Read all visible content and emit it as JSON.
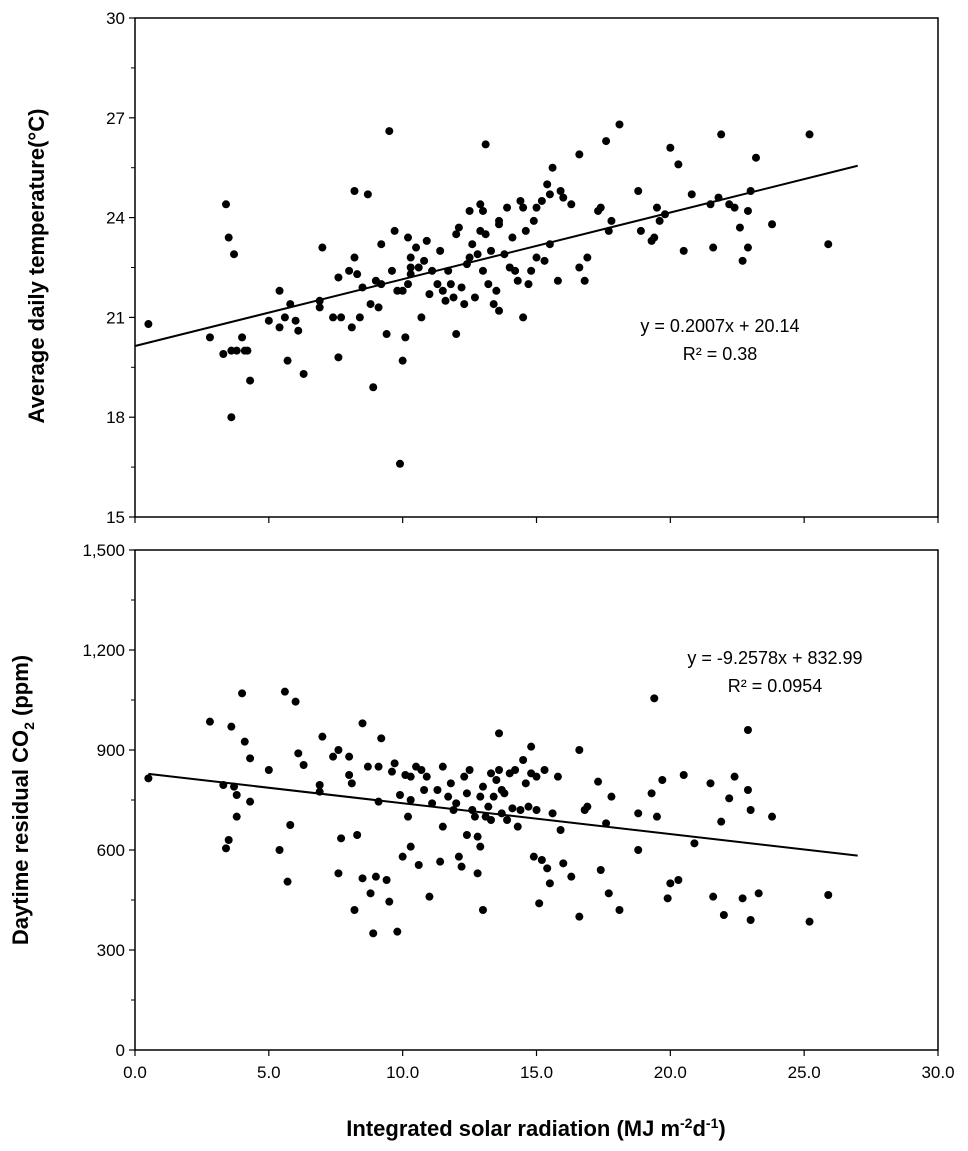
{
  "chart_data": [
    {
      "type": "scatter",
      "title": "",
      "xlabel": "",
      "ylabel": "Average daily temperature(°C)",
      "xlim": [
        0,
        30
      ],
      "ylim": [
        15,
        30
      ],
      "xticks": [
        0,
        5,
        10,
        15,
        20,
        25,
        30
      ],
      "xtick_labels": [],
      "yticks": [
        15,
        18,
        21,
        24,
        27,
        30
      ],
      "ytick_labels": [
        "15",
        "18",
        "21",
        "24",
        "27",
        "30"
      ],
      "grid": false,
      "trendline": {
        "slope": 0.2007,
        "intercept": 20.14,
        "x_range": [
          0,
          27
        ]
      },
      "equation": "y = 0.2007x + 20.14",
      "r_squared": "R² = 0.38",
      "points": [
        [
          0.5,
          20.8
        ],
        [
          2.8,
          20.4
        ],
        [
          3.3,
          19.9
        ],
        [
          3.4,
          24.4
        ],
        [
          3.5,
          23.4
        ],
        [
          3.6,
          18.0
        ],
        [
          3.7,
          22.9
        ],
        [
          3.6,
          20.0
        ],
        [
          3.8,
          20.0
        ],
        [
          4.0,
          20.4
        ],
        [
          4.1,
          20.0
        ],
        [
          4.2,
          20.0
        ],
        [
          4.3,
          19.1
        ],
        [
          5.0,
          20.9
        ],
        [
          5.4,
          20.7
        ],
        [
          5.4,
          21.8
        ],
        [
          5.6,
          21.0
        ],
        [
          5.7,
          19.7
        ],
        [
          5.8,
          21.4
        ],
        [
          6.0,
          20.9
        ],
        [
          6.1,
          20.6
        ],
        [
          6.3,
          19.3
        ],
        [
          6.9,
          21.5
        ],
        [
          6.9,
          21.3
        ],
        [
          7.0,
          23.1
        ],
        [
          7.4,
          21.0
        ],
        [
          7.6,
          19.8
        ],
        [
          7.7,
          21.0
        ],
        [
          7.6,
          22.2
        ],
        [
          8.0,
          22.4
        ],
        [
          8.1,
          20.7
        ],
        [
          8.2,
          22.8
        ],
        [
          8.2,
          24.8
        ],
        [
          8.3,
          22.3
        ],
        [
          8.4,
          21.0
        ],
        [
          8.5,
          21.9
        ],
        [
          8.7,
          24.7
        ],
        [
          8.8,
          21.4
        ],
        [
          8.9,
          18.9
        ],
        [
          9.0,
          22.1
        ],
        [
          9.1,
          21.3
        ],
        [
          9.2,
          23.2
        ],
        [
          9.2,
          22.0
        ],
        [
          9.4,
          20.5
        ],
        [
          9.5,
          26.6
        ],
        [
          9.6,
          22.4
        ],
        [
          9.7,
          23.6
        ],
        [
          9.8,
          21.8
        ],
        [
          9.9,
          16.6
        ],
        [
          10.0,
          21.8
        ],
        [
          10.0,
          19.7
        ],
        [
          10.1,
          20.4
        ],
        [
          10.2,
          22.0
        ],
        [
          10.2,
          23.4
        ],
        [
          10.3,
          22.8
        ],
        [
          10.3,
          22.5
        ],
        [
          10.3,
          22.3
        ],
        [
          10.5,
          23.1
        ],
        [
          10.6,
          22.5
        ],
        [
          10.7,
          21.0
        ],
        [
          10.8,
          22.7
        ],
        [
          10.9,
          23.3
        ],
        [
          11.0,
          21.7
        ],
        [
          11.1,
          22.4
        ],
        [
          11.3,
          22.0
        ],
        [
          11.4,
          23.0
        ],
        [
          11.5,
          21.8
        ],
        [
          11.6,
          21.5
        ],
        [
          11.7,
          22.4
        ],
        [
          11.8,
          22.0
        ],
        [
          11.9,
          21.6
        ],
        [
          12.0,
          20.5
        ],
        [
          12.0,
          23.5
        ],
        [
          12.1,
          23.7
        ],
        [
          12.2,
          21.9
        ],
        [
          12.3,
          21.4
        ],
        [
          12.4,
          22.6
        ],
        [
          12.5,
          24.2
        ],
        [
          12.5,
          22.8
        ],
        [
          12.6,
          23.2
        ],
        [
          12.7,
          21.6
        ],
        [
          12.8,
          22.9
        ],
        [
          12.9,
          24.4
        ],
        [
          12.9,
          23.6
        ],
        [
          13.0,
          24.2
        ],
        [
          13.0,
          22.4
        ],
        [
          13.1,
          23.5
        ],
        [
          13.1,
          26.2
        ],
        [
          13.2,
          22.0
        ],
        [
          13.3,
          23.0
        ],
        [
          13.4,
          21.4
        ],
        [
          13.5,
          21.8
        ],
        [
          13.6,
          23.9
        ],
        [
          13.6,
          21.2
        ],
        [
          13.6,
          23.8
        ],
        [
          13.8,
          22.9
        ],
        [
          13.9,
          24.3
        ],
        [
          14.0,
          22.5
        ],
        [
          14.1,
          23.4
        ],
        [
          14.2,
          22.4
        ],
        [
          14.3,
          22.1
        ],
        [
          14.4,
          24.5
        ],
        [
          14.5,
          21.0
        ],
        [
          14.5,
          24.3
        ],
        [
          14.6,
          23.6
        ],
        [
          14.7,
          22.0
        ],
        [
          14.8,
          22.4
        ],
        [
          14.9,
          23.9
        ],
        [
          15.0,
          24.3
        ],
        [
          15.0,
          22.8
        ],
        [
          15.2,
          24.5
        ],
        [
          15.3,
          22.7
        ],
        [
          15.4,
          25.0
        ],
        [
          15.5,
          23.2
        ],
        [
          15.5,
          24.7
        ],
        [
          15.6,
          25.5
        ],
        [
          15.8,
          22.1
        ],
        [
          15.9,
          24.8
        ],
        [
          16.0,
          24.6
        ],
        [
          16.3,
          24.4
        ],
        [
          16.6,
          22.5
        ],
        [
          16.6,
          25.9
        ],
        [
          16.8,
          22.1
        ],
        [
          16.9,
          22.8
        ],
        [
          17.3,
          24.2
        ],
        [
          17.4,
          24.3
        ],
        [
          17.6,
          26.3
        ],
        [
          17.7,
          23.6
        ],
        [
          17.8,
          23.9
        ],
        [
          18.1,
          26.8
        ],
        [
          18.8,
          24.8
        ],
        [
          18.9,
          23.6
        ],
        [
          19.3,
          23.3
        ],
        [
          19.4,
          23.4
        ],
        [
          19.5,
          24.3
        ],
        [
          19.6,
          23.9
        ],
        [
          19.8,
          24.1
        ],
        [
          20.0,
          26.1
        ],
        [
          20.3,
          25.6
        ],
        [
          20.5,
          23.0
        ],
        [
          20.8,
          24.7
        ],
        [
          21.5,
          24.4
        ],
        [
          21.6,
          23.1
        ],
        [
          21.8,
          24.6
        ],
        [
          21.9,
          26.5
        ],
        [
          22.2,
          24.4
        ],
        [
          22.4,
          24.3
        ],
        [
          22.6,
          23.7
        ],
        [
          22.7,
          22.7
        ],
        [
          22.9,
          23.1
        ],
        [
          22.9,
          24.2
        ],
        [
          23.0,
          24.8
        ],
        [
          23.2,
          25.8
        ],
        [
          23.8,
          23.8
        ],
        [
          25.2,
          26.5
        ],
        [
          25.9,
          23.2
        ]
      ]
    },
    {
      "type": "scatter",
      "title": "",
      "xlabel": "Integrated solar radiation (MJ m-2d-1)",
      "xlabel_parts": {
        "main": "Integrated solar radiation (MJ m",
        "sup1": "-2",
        "mid": "d",
        "sup2": "-1",
        "end": ")"
      },
      "ylabel": "Daytime residual CO2 (ppm)",
      "ylabel_parts": {
        "main": "Daytime residual CO",
        "sub": "2",
        "end": " (ppm)"
      },
      "xlim": [
        0,
        30
      ],
      "ylim": [
        0,
        1500
      ],
      "xticks": [
        0,
        5,
        10,
        15,
        20,
        25,
        30
      ],
      "xtick_labels": [
        "0.0",
        "5.0",
        "10.0",
        "15.0",
        "20.0",
        "25.0",
        "30.0"
      ],
      "yticks": [
        0,
        300,
        600,
        900,
        1200,
        1500
      ],
      "ytick_labels": [
        "0",
        "300",
        "600",
        "900",
        "1,200",
        "1,500"
      ],
      "grid": false,
      "trendline": {
        "slope": -9.2578,
        "intercept": 832.99,
        "x_range": [
          0.5,
          27
        ]
      },
      "equation": "y = -9.2578x + 832.99",
      "r_squared": "R² = 0.0954",
      "points": [
        [
          0.5,
          815
        ],
        [
          2.8,
          985
        ],
        [
          3.3,
          795
        ],
        [
          3.4,
          605
        ],
        [
          3.5,
          630
        ],
        [
          3.6,
          970
        ],
        [
          3.7,
          790
        ],
        [
          3.8,
          700
        ],
        [
          3.8,
          765
        ],
        [
          4.0,
          1070
        ],
        [
          4.1,
          925
        ],
        [
          4.3,
          875
        ],
        [
          4.3,
          745
        ],
        [
          5.0,
          840
        ],
        [
          5.4,
          600
        ],
        [
          5.6,
          1075
        ],
        [
          5.7,
          505
        ],
        [
          5.8,
          675
        ],
        [
          6.0,
          1045
        ],
        [
          6.1,
          890
        ],
        [
          6.3,
          855
        ],
        [
          6.9,
          775
        ],
        [
          6.9,
          795
        ],
        [
          7.0,
          940
        ],
        [
          7.4,
          880
        ],
        [
          7.6,
          530
        ],
        [
          7.6,
          900
        ],
        [
          7.7,
          635
        ],
        [
          8.0,
          880
        ],
        [
          8.0,
          825
        ],
        [
          8.1,
          800
        ],
        [
          8.2,
          420
        ],
        [
          8.3,
          645
        ],
        [
          8.5,
          980
        ],
        [
          8.5,
          515
        ],
        [
          8.7,
          850
        ],
        [
          8.8,
          470
        ],
        [
          8.9,
          350
        ],
        [
          9.0,
          520
        ],
        [
          9.1,
          850
        ],
        [
          9.1,
          745
        ],
        [
          9.2,
          935
        ],
        [
          9.4,
          510
        ],
        [
          9.5,
          445
        ],
        [
          9.6,
          835
        ],
        [
          9.7,
          860
        ],
        [
          9.8,
          355
        ],
        [
          9.9,
          765
        ],
        [
          10.0,
          580
        ],
        [
          10.1,
          825
        ],
        [
          10.2,
          700
        ],
        [
          10.3,
          610
        ],
        [
          10.3,
          750
        ],
        [
          10.3,
          820
        ],
        [
          10.5,
          850
        ],
        [
          10.6,
          555
        ],
        [
          10.7,
          840
        ],
        [
          10.8,
          780
        ],
        [
          10.9,
          820
        ],
        [
          11.0,
          460
        ],
        [
          11.1,
          740
        ],
        [
          11.3,
          780
        ],
        [
          11.4,
          565
        ],
        [
          11.5,
          850
        ],
        [
          11.5,
          670
        ],
        [
          11.7,
          760
        ],
        [
          11.8,
          800
        ],
        [
          11.9,
          720
        ],
        [
          12.0,
          740
        ],
        [
          12.1,
          580
        ],
        [
          12.2,
          550
        ],
        [
          12.3,
          820
        ],
        [
          12.4,
          645
        ],
        [
          12.4,
          770
        ],
        [
          12.5,
          840
        ],
        [
          12.6,
          720
        ],
        [
          12.7,
          700
        ],
        [
          12.8,
          640
        ],
        [
          12.8,
          530
        ],
        [
          12.9,
          610
        ],
        [
          12.9,
          760
        ],
        [
          13.0,
          790
        ],
        [
          13.0,
          420
        ],
        [
          13.1,
          700
        ],
        [
          13.2,
          730
        ],
        [
          13.3,
          830
        ],
        [
          13.3,
          690
        ],
        [
          13.4,
          760
        ],
        [
          13.5,
          810
        ],
        [
          13.6,
          840
        ],
        [
          13.6,
          950
        ],
        [
          13.7,
          710
        ],
        [
          13.7,
          780
        ],
        [
          13.8,
          770
        ],
        [
          13.9,
          690
        ],
        [
          14.0,
          830
        ],
        [
          14.1,
          725
        ],
        [
          14.2,
          840
        ],
        [
          14.3,
          670
        ],
        [
          14.4,
          720
        ],
        [
          14.5,
          870
        ],
        [
          14.6,
          800
        ],
        [
          14.7,
          730
        ],
        [
          14.8,
          830
        ],
        [
          14.8,
          910
        ],
        [
          14.9,
          580
        ],
        [
          15.0,
          820
        ],
        [
          15.0,
          720
        ],
        [
          15.1,
          440
        ],
        [
          15.2,
          570
        ],
        [
          15.3,
          840
        ],
        [
          15.4,
          545
        ],
        [
          15.5,
          500
        ],
        [
          15.6,
          710
        ],
        [
          15.8,
          820
        ],
        [
          15.9,
          660
        ],
        [
          16.0,
          560
        ],
        [
          16.3,
          520
        ],
        [
          16.6,
          400
        ],
        [
          16.6,
          900
        ],
        [
          16.8,
          720
        ],
        [
          16.9,
          730
        ],
        [
          17.3,
          805
        ],
        [
          17.4,
          540
        ],
        [
          17.6,
          680
        ],
        [
          17.7,
          470
        ],
        [
          17.8,
          760
        ],
        [
          18.1,
          420
        ],
        [
          18.8,
          710
        ],
        [
          18.8,
          600
        ],
        [
          19.3,
          770
        ],
        [
          19.4,
          1055
        ],
        [
          19.5,
          700
        ],
        [
          19.7,
          810
        ],
        [
          19.9,
          455
        ],
        [
          20.0,
          500
        ],
        [
          20.3,
          510
        ],
        [
          20.5,
          825
        ],
        [
          20.9,
          620
        ],
        [
          21.5,
          800
        ],
        [
          21.6,
          460
        ],
        [
          21.9,
          685
        ],
        [
          22.0,
          405
        ],
        [
          22.2,
          755
        ],
        [
          22.4,
          820
        ],
        [
          22.7,
          455
        ],
        [
          22.9,
          960
        ],
        [
          22.9,
          780
        ],
        [
          23.0,
          390
        ],
        [
          23.0,
          720
        ],
        [
          23.3,
          470
        ],
        [
          23.8,
          700
        ],
        [
          25.2,
          385
        ],
        [
          25.9,
          465
        ]
      ]
    }
  ]
}
